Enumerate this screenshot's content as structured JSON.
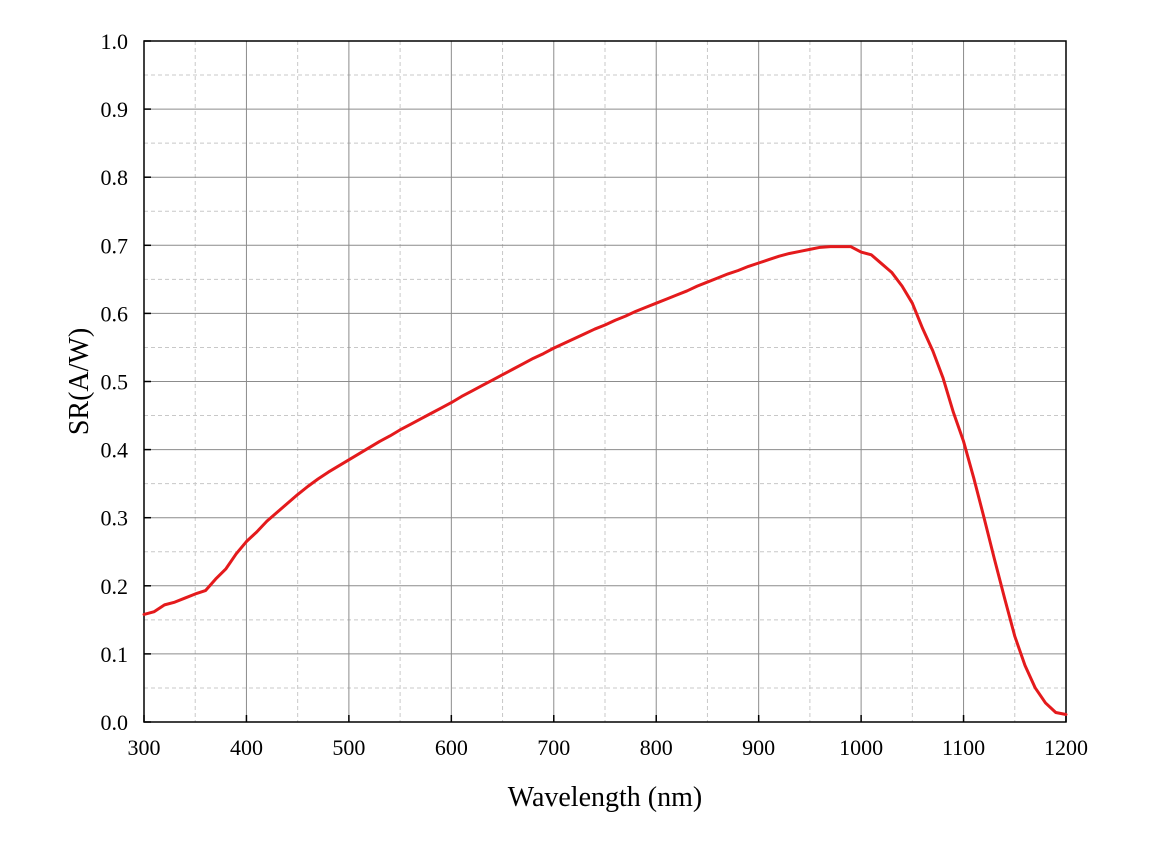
{
  "chart_data": {
    "type": "line",
    "title": "",
    "xlabel": "Wavelength (nm)",
    "ylabel": "SR(A/W)",
    "xlim": [
      300,
      1200
    ],
    "ylim": [
      0.0,
      1.0
    ],
    "xticks": [
      300,
      400,
      500,
      600,
      700,
      800,
      900,
      1000,
      1100,
      1200
    ],
    "xtick_labels": [
      "300",
      "400",
      "500",
      "600",
      "700",
      "800",
      "900",
      "1000",
      "1100",
      "1200"
    ],
    "yticks": [
      0.0,
      0.1,
      0.2,
      0.3,
      0.4,
      0.5,
      0.6,
      0.7,
      0.8,
      0.9,
      1.0
    ],
    "ytick_labels": [
      "0.0",
      "0.1",
      "0.2",
      "0.3",
      "0.4",
      "0.5",
      "0.6",
      "0.7",
      "0.8",
      "0.9",
      "1.0"
    ],
    "grid": {
      "major": true,
      "minor_dashed": true
    },
    "legend": "none",
    "series": [
      {
        "color": "#e41a1c",
        "x": [
          300,
          310,
          320,
          330,
          340,
          350,
          360,
          370,
          380,
          390,
          400,
          410,
          420,
          430,
          440,
          450,
          460,
          470,
          480,
          490,
          500,
          510,
          520,
          530,
          540,
          550,
          560,
          570,
          580,
          590,
          600,
          610,
          620,
          630,
          640,
          650,
          660,
          670,
          680,
          690,
          700,
          710,
          720,
          730,
          740,
          750,
          760,
          770,
          780,
          790,
          800,
          810,
          820,
          830,
          840,
          850,
          860,
          870,
          880,
          890,
          900,
          910,
          920,
          930,
          940,
          950,
          960,
          970,
          980,
          990,
          1000,
          1010,
          1020,
          1030,
          1040,
          1050,
          1060,
          1070,
          1080,
          1090,
          1100,
          1110,
          1120,
          1130,
          1140,
          1150,
          1160,
          1170,
          1180,
          1190,
          1200
        ],
        "y": [
          0.158,
          0.162,
          0.172,
          0.176,
          0.182,
          0.188,
          0.193,
          0.21,
          0.225,
          0.247,
          0.265,
          0.279,
          0.295,
          0.308,
          0.321,
          0.334,
          0.346,
          0.357,
          0.367,
          0.376,
          0.385,
          0.394,
          0.403,
          0.412,
          0.42,
          0.429,
          0.437,
          0.445,
          0.453,
          0.461,
          0.469,
          0.478,
          0.486,
          0.494,
          0.502,
          0.51,
          0.518,
          0.526,
          0.534,
          0.541,
          0.549,
          0.556,
          0.563,
          0.57,
          0.577,
          0.583,
          0.59,
          0.596,
          0.603,
          0.609,
          0.615,
          0.621,
          0.627,
          0.633,
          0.64,
          0.646,
          0.652,
          0.658,
          0.663,
          0.669,
          0.674,
          0.679,
          0.684,
          0.688,
          0.691,
          0.694,
          0.697,
          0.698,
          0.698,
          0.698,
          0.69,
          0.686,
          0.673,
          0.66,
          0.64,
          0.615,
          0.578,
          0.545,
          0.505,
          0.455,
          0.412,
          0.358,
          0.3,
          0.24,
          0.182,
          0.126,
          0.083,
          0.05,
          0.028,
          0.014,
          0.011
        ]
      }
    ]
  }
}
